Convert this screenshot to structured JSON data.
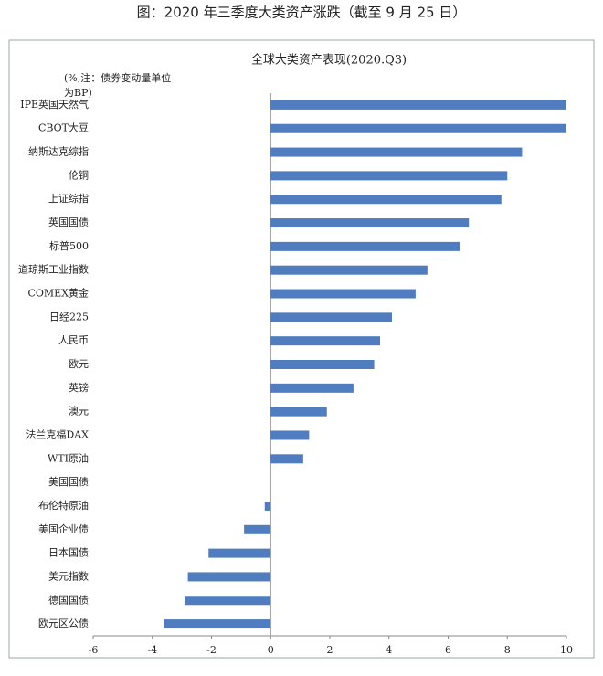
{
  "page_title": "图：2020 年三季度大类资产涨跌（截至 9 月 25 日）",
  "chart_data": {
    "type": "hbar",
    "title": "全球大类资产表现(2020.Q3)",
    "note": "(%,注：债券变动量单位为BP)",
    "categories": [
      "IPE英国天然气",
      "CBOT大豆",
      "纳斯达克综指",
      "伦铜",
      "上证综指",
      "英国国债",
      "标普500",
      "道琼斯工业指数",
      "COMEX黄金",
      "日经225",
      "人民币",
      "欧元",
      "英镑",
      "澳元",
      "法兰克福DAX",
      "WTI原油",
      "美国国债",
      "布伦特原油",
      "美国企业债",
      "日本国债",
      "美元指数",
      "德国国债",
      "欧元区公债"
    ],
    "values": [
      10.0,
      10.0,
      8.5,
      8.0,
      7.8,
      6.7,
      6.4,
      5.3,
      4.9,
      4.1,
      3.7,
      3.5,
      2.8,
      1.9,
      1.3,
      1.1,
      0,
      -0.2,
      -0.9,
      -2.1,
      -2.8,
      -2.9,
      -3.6
    ],
    "color": "#4f7dbf",
    "xlim": [
      -6,
      10
    ],
    "xticks": [
      -6,
      -4,
      -2,
      0,
      2,
      4,
      6,
      8,
      10
    ]
  }
}
